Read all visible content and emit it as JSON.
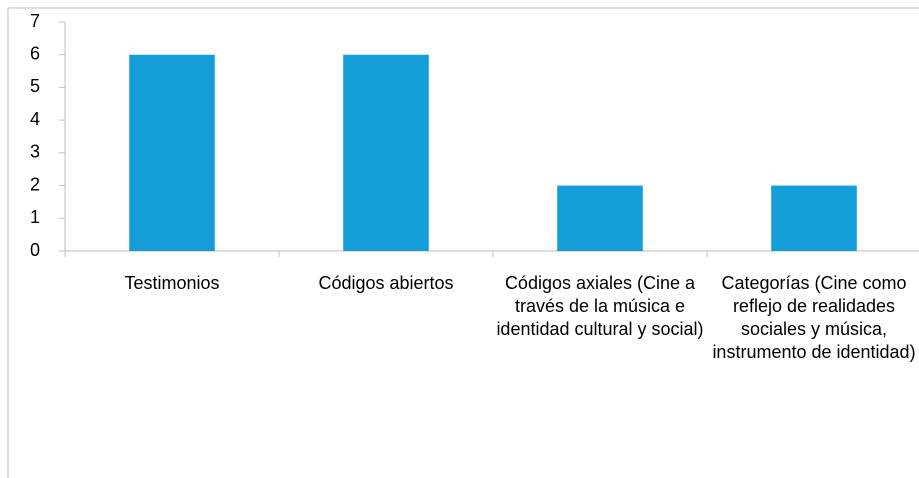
{
  "chart_data": {
    "type": "bar",
    "categories": [
      "Testimonios",
      "Códigos abiertos",
      "Códigos axiales (Cine a través de la música e identidad cultural y social)",
      "Categorías (Cine como reflejo de realidades sociales y música, instrumento de identidad)"
    ],
    "values": [
      6,
      6,
      2,
      2
    ],
    "color": "#149dd8",
    "ylim": [
      0,
      7
    ],
    "yticks": [
      0,
      1,
      2,
      3,
      4,
      5,
      6,
      7
    ],
    "grid": false
  }
}
